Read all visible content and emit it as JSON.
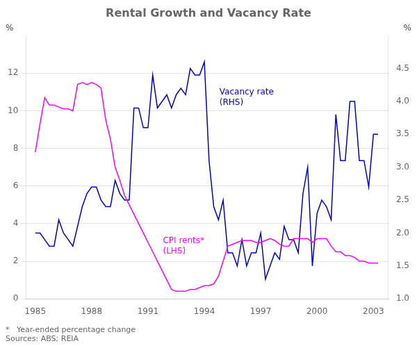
{
  "chart_data": {
    "type": "line",
    "title": "Rental Growth and Vacancy Rate",
    "ylabel": "%",
    "y2label": "%",
    "note": "*   Year-ended percentage change\nSources: ABS; REIA",
    "x": [
      1985.0,
      1985.25,
      1985.5,
      1985.75,
      1986.0,
      1986.25,
      1986.5,
      1986.75,
      1987.0,
      1987.25,
      1987.5,
      1987.75,
      1988.0,
      1988.25,
      1988.5,
      1988.75,
      1989.0,
      1989.25,
      1989.5,
      1989.75,
      1990.0,
      1990.25,
      1990.5,
      1990.75,
      1991.0,
      1991.25,
      1991.5,
      1991.75,
      1992.0,
      1992.25,
      1992.5,
      1992.75,
      1993.0,
      1993.25,
      1993.5,
      1993.75,
      1994.0,
      1994.25,
      1994.5,
      1994.75,
      1995.0,
      1995.25,
      1995.5,
      1995.75,
      1996.0,
      1996.25,
      1996.5,
      1996.75,
      1997.0,
      1997.25,
      1997.5,
      1997.75,
      1998.0,
      1998.25,
      1998.5,
      1998.75,
      1999.0,
      1999.25,
      1999.5,
      1999.75,
      2000.0,
      2000.25,
      2000.5,
      2000.75,
      2001.0,
      2001.25,
      2001.5,
      2001.75,
      2002.0,
      2002.25,
      2002.5,
      2002.75,
      2003.0,
      2003.25
    ],
    "series": [
      {
        "name": "CPI rents*\n(LHS)",
        "color": "#FF00FF",
        "values": [
          7.8,
          9.3,
          10.7,
          10.3,
          10.3,
          10.2,
          10.1,
          10.1,
          10.0,
          11.4,
          11.5,
          11.4,
          11.5,
          11.4,
          11.2,
          9.5,
          8.5,
          7.0,
          6.3,
          5.5,
          5.0,
          4.5,
          4.0,
          3.5,
          3.0,
          2.5,
          2.0,
          1.5,
          1.0,
          0.5,
          0.4,
          0.4,
          0.4,
          0.5,
          0.5,
          0.6,
          0.7,
          0.7,
          0.8,
          1.2,
          2.0,
          2.8,
          2.9,
          3.0,
          3.1,
          3.1,
          3.1,
          3.0,
          3.0,
          3.1,
          3.2,
          3.1,
          2.9,
          2.8,
          2.8,
          3.2,
          3.2,
          3.2,
          3.2,
          3.0,
          3.2,
          3.2,
          3.2,
          2.8,
          2.5,
          2.5,
          2.3,
          2.3,
          2.2,
          2.0,
          2.0,
          1.9,
          1.9,
          1.9
        ]
      },
      {
        "name": "Vacancy rate\n(RHS)",
        "color": "#0000CC",
        "axis": "y2",
        "values": [
          2.0,
          2.0,
          1.9,
          1.8,
          1.8,
          2.2,
          2.0,
          1.9,
          1.8,
          2.1,
          2.4,
          2.6,
          2.7,
          2.7,
          2.5,
          2.4,
          2.4,
          2.8,
          2.6,
          2.5,
          2.5,
          3.9,
          3.9,
          3.6,
          3.6,
          4.4,
          3.9,
          4.0,
          4.1,
          3.9,
          4.1,
          4.2,
          4.1,
          4.5,
          4.4,
          4.4,
          4.6,
          3.1,
          2.4,
          2.2,
          2.5,
          1.7,
          1.7,
          1.5,
          1.9,
          1.5,
          1.7,
          1.7,
          2.0,
          1.3,
          1.5,
          1.7,
          1.6,
          2.1,
          1.9,
          1.9,
          1.7,
          2.6,
          3.0,
          1.5,
          2.3,
          2.5,
          2.4,
          2.2,
          3.8,
          3.1,
          3.1,
          4.0,
          4.0,
          3.1,
          3.1,
          2.7,
          3.5,
          3.5
        ]
      }
    ],
    "xlim": [
      1984.5,
      2003.8
    ],
    "xticks": [
      1985,
      1988,
      1991,
      1994,
      1997,
      2000,
      2003
    ],
    "ylim": [
      0,
      14
    ],
    "yticks": [
      0,
      2,
      4,
      6,
      8,
      10,
      12
    ],
    "y2lim": [
      1,
      5
    ],
    "y2ticks": [
      {
        "value": 1,
        "label": "1.0"
      },
      1.5,
      {
        "value": 2,
        "label": "2.0"
      },
      2.5,
      {
        "value": 3,
        "label": "3.0"
      },
      3.5,
      {
        "value": 4,
        "label": "4.0"
      },
      4.5
    ],
    "grid": true
  }
}
